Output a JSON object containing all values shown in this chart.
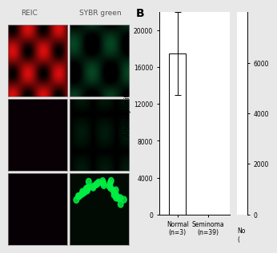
{
  "title_B": "B",
  "ylabel": "Arbitrary Units",
  "bar1_value": 17500,
  "bar1_error": 4500,
  "bar1_label": "Normal\n(n=3)",
  "bar2_label": "Seminoma\n(n=39)",
  "bar3_label": "No\n(",
  "ylim_left": [
    0,
    22000
  ],
  "yticks_left": [
    0,
    4000,
    8000,
    12000,
    16000,
    20000
  ],
  "ylim_right": [
    0,
    8000
  ],
  "yticks_right": [
    0,
    2000,
    4000,
    6000
  ],
  "bar_color": "#ffffff",
  "bar_edgecolor": "#000000",
  "background": "#ffffff",
  "fig_background": "#e8e8e8",
  "label_REIC": "REIC",
  "label_SYBR": "SYBR green",
  "micro_bg": "#0a0a1a",
  "micro_row1_left_color": "#cc2200",
  "micro_row1_right_color": "#003322",
  "micro_row2_left_color": "#0a0a1a",
  "micro_row2_right_color": "#002211",
  "micro_row3_left_color": "#0a0a1a",
  "micro_row3_right_color": "#003322"
}
